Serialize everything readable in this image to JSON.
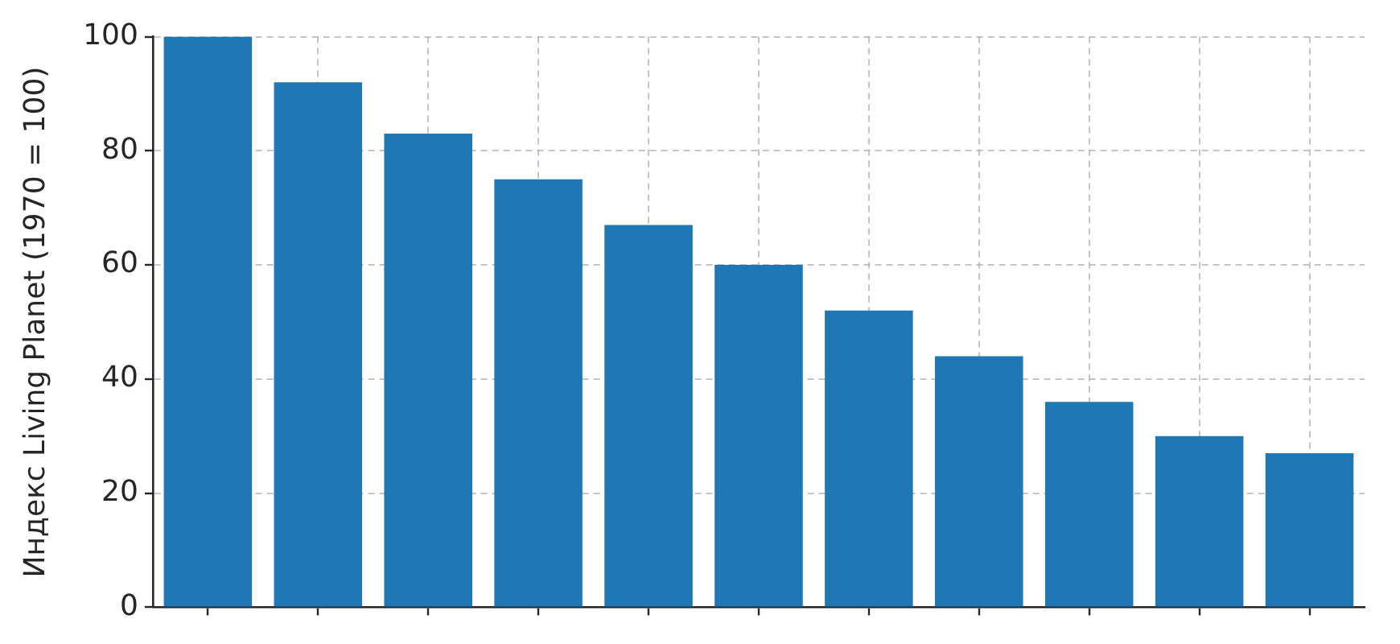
{
  "chart_data": {
    "type": "bar",
    "ylabel": "Индекс Living Planet (1970 = 100)",
    "categories": [
      null,
      null,
      null,
      null,
      null,
      null,
      null,
      null,
      null,
      null,
      null
    ],
    "values": [
      100,
      92,
      83,
      75,
      67,
      60,
      52,
      44,
      36,
      30,
      27
    ],
    "color": "#1f77b4",
    "ylim": [
      0,
      100
    ],
    "yticks": [
      0,
      20,
      40,
      60,
      80,
      100
    ],
    "grid": true,
    "tick_labels": "y"
  }
}
